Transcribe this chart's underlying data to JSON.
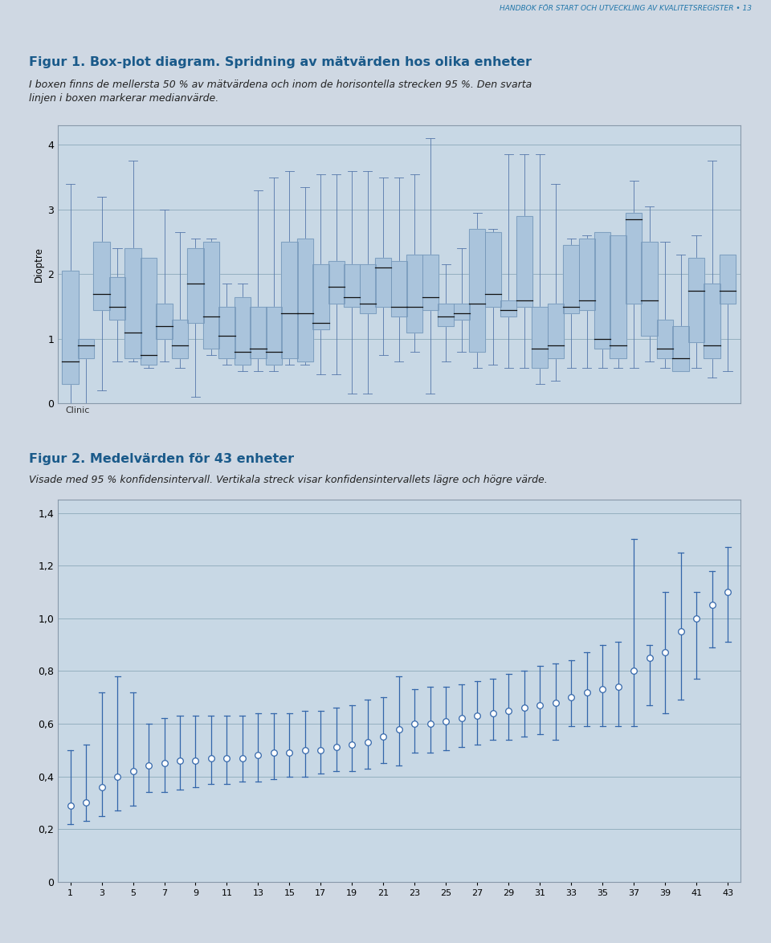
{
  "page_bg": "#cfd8e3",
  "chart1_bg": "#c8d8e5",
  "chart2_bg": "#c8d8e5",
  "chart_border": "#8899aa",
  "header_text": "HANDBOK FÖR START OCH UTVECKLING AV KVALITETSREGISTER • 13",
  "fig1_title": "Figur 1. Box-plot diagram. Spridning av mätvärden hos olika enheter",
  "fig1_subtitle": "I boxen finns de mellersta 50 % av mätvärdena och inom de horisontella strecken 95 %. Den svarta\nlinjen i boxen markerar medianvärde.",
  "fig1_ylabel": "Dioptre",
  "fig1_xlabel": "Clinic",
  "fig1_ylim": [
    0,
    4.3
  ],
  "fig1_yticks": [
    0,
    1,
    2,
    3,
    4
  ],
  "fig2_title": "Figur 2. Medelvärden för 43 enheter",
  "fig2_subtitle": "Visade med 95 % konfidensintervall. Vertikala streck visar konfidensintervallets lägre och högre värde.",
  "fig2_ylim": [
    0,
    1.45
  ],
  "fig2_yticks": [
    0,
    0.2,
    0.4,
    0.6,
    0.8,
    1.0,
    1.2,
    1.4
  ],
  "fig2_ytick_labels": [
    "0",
    "0,2",
    "0,4",
    "0,6",
    "0,8",
    "1,0",
    "1,2",
    "1,4"
  ],
  "box_color": "#aac4dc",
  "box_edge_color": "#7799bb",
  "whisker_color": "#5577aa",
  "median_color": "#111111",
  "dot_color": "white",
  "dot_edge_color": "#3366aa",
  "ci_line_color": "#3366aa",
  "title_color": "#1a5a8a",
  "subtitle_color": "#222222",
  "header_color": "#2277aa",
  "boxes": [
    {
      "med": 0.65,
      "q1": 0.3,
      "q3": 2.05,
      "whislo": 0.0,
      "whishi": 3.4
    },
    {
      "med": 0.9,
      "q1": 0.7,
      "q3": 1.0,
      "whislo": 0.0,
      "whishi": 1.0
    },
    {
      "med": 1.7,
      "q1": 1.45,
      "q3": 2.5,
      "whislo": 0.2,
      "whishi": 3.2
    },
    {
      "med": 1.5,
      "q1": 1.3,
      "q3": 1.95,
      "whislo": 0.65,
      "whishi": 2.4
    },
    {
      "med": 1.1,
      "q1": 0.7,
      "q3": 2.4,
      "whislo": 0.65,
      "whishi": 3.75
    },
    {
      "med": 0.75,
      "q1": 0.6,
      "q3": 2.25,
      "whislo": 0.55,
      "whishi": 2.25
    },
    {
      "med": 1.2,
      "q1": 1.0,
      "q3": 1.55,
      "whislo": 0.65,
      "whishi": 3.0
    },
    {
      "med": 0.9,
      "q1": 0.7,
      "q3": 1.3,
      "whislo": 0.55,
      "whishi": 2.65
    },
    {
      "med": 1.85,
      "q1": 1.25,
      "q3": 2.4,
      "whislo": 0.1,
      "whishi": 2.55
    },
    {
      "med": 1.35,
      "q1": 0.85,
      "q3": 2.5,
      "whislo": 0.75,
      "whishi": 2.55
    },
    {
      "med": 1.05,
      "q1": 0.7,
      "q3": 1.5,
      "whislo": 0.6,
      "whishi": 1.85
    },
    {
      "med": 0.8,
      "q1": 0.6,
      "q3": 1.65,
      "whislo": 0.5,
      "whishi": 1.85
    },
    {
      "med": 0.85,
      "q1": 0.7,
      "q3": 1.5,
      "whislo": 0.5,
      "whishi": 3.3
    },
    {
      "med": 0.8,
      "q1": 0.6,
      "q3": 1.5,
      "whislo": 0.5,
      "whishi": 3.5
    },
    {
      "med": 1.4,
      "q1": 0.7,
      "q3": 2.5,
      "whislo": 0.6,
      "whishi": 3.6
    },
    {
      "med": 1.4,
      "q1": 0.65,
      "q3": 2.55,
      "whislo": 0.6,
      "whishi": 3.35
    },
    {
      "med": 1.25,
      "q1": 1.15,
      "q3": 2.15,
      "whislo": 0.45,
      "whishi": 3.55
    },
    {
      "med": 1.8,
      "q1": 1.55,
      "q3": 2.2,
      "whislo": 0.45,
      "whishi": 3.55
    },
    {
      "med": 1.65,
      "q1": 1.5,
      "q3": 2.15,
      "whislo": 0.15,
      "whishi": 3.6
    },
    {
      "med": 1.55,
      "q1": 1.4,
      "q3": 2.15,
      "whislo": 0.15,
      "whishi": 3.6
    },
    {
      "med": 2.1,
      "q1": 1.5,
      "q3": 2.25,
      "whislo": 0.75,
      "whishi": 3.5
    },
    {
      "med": 1.5,
      "q1": 1.35,
      "q3": 2.2,
      "whislo": 0.65,
      "whishi": 3.5
    },
    {
      "med": 1.5,
      "q1": 1.1,
      "q3": 2.3,
      "whislo": 0.8,
      "whishi": 3.55
    },
    {
      "med": 1.65,
      "q1": 1.45,
      "q3": 2.3,
      "whislo": 0.15,
      "whishi": 4.1
    },
    {
      "med": 1.35,
      "q1": 1.2,
      "q3": 1.55,
      "whislo": 0.65,
      "whishi": 2.15
    },
    {
      "med": 1.4,
      "q1": 1.3,
      "q3": 1.55,
      "whislo": 0.8,
      "whishi": 2.4
    },
    {
      "med": 1.55,
      "q1": 0.8,
      "q3": 2.7,
      "whislo": 0.55,
      "whishi": 2.95
    },
    {
      "med": 1.7,
      "q1": 1.5,
      "q3": 2.65,
      "whislo": 0.6,
      "whishi": 2.7
    },
    {
      "med": 1.45,
      "q1": 1.35,
      "q3": 1.6,
      "whislo": 0.55,
      "whishi": 3.85
    },
    {
      "med": 1.6,
      "q1": 1.5,
      "q3": 2.9,
      "whislo": 0.55,
      "whishi": 3.85
    },
    {
      "med": 0.85,
      "q1": 0.55,
      "q3": 1.5,
      "whislo": 0.3,
      "whishi": 3.85
    },
    {
      "med": 0.9,
      "q1": 0.7,
      "q3": 1.55,
      "whislo": 0.35,
      "whishi": 3.4
    },
    {
      "med": 1.5,
      "q1": 1.4,
      "q3": 2.45,
      "whislo": 0.55,
      "whishi": 2.55
    },
    {
      "med": 1.6,
      "q1": 1.45,
      "q3": 2.55,
      "whislo": 0.55,
      "whishi": 2.6
    },
    {
      "med": 1.0,
      "q1": 0.85,
      "q3": 2.65,
      "whislo": 0.55,
      "whishi": 2.65
    },
    {
      "med": 0.9,
      "q1": 0.7,
      "q3": 2.6,
      "whislo": 0.55,
      "whishi": 2.6
    },
    {
      "med": 2.85,
      "q1": 1.55,
      "q3": 2.95,
      "whislo": 0.55,
      "whishi": 3.45
    },
    {
      "med": 1.6,
      "q1": 1.05,
      "q3": 2.5,
      "whislo": 0.65,
      "whishi": 3.05
    },
    {
      "med": 0.85,
      "q1": 0.7,
      "q3": 1.3,
      "whislo": 0.55,
      "whishi": 2.5
    },
    {
      "med": 0.7,
      "q1": 0.5,
      "q3": 1.2,
      "whislo": 0.5,
      "whishi": 2.3
    },
    {
      "med": 1.75,
      "q1": 0.95,
      "q3": 2.25,
      "whislo": 0.55,
      "whishi": 2.6
    },
    {
      "med": 0.9,
      "q1": 0.7,
      "q3": 1.85,
      "whislo": 0.4,
      "whishi": 3.75
    },
    {
      "med": 1.75,
      "q1": 1.55,
      "q3": 2.3,
      "whislo": 0.5,
      "whishi": 2.3
    }
  ],
  "means": [
    0.29,
    0.3,
    0.36,
    0.4,
    0.42,
    0.44,
    0.45,
    0.46,
    0.46,
    0.47,
    0.47,
    0.47,
    0.48,
    0.49,
    0.49,
    0.5,
    0.5,
    0.51,
    0.52,
    0.53,
    0.55,
    0.58,
    0.6,
    0.6,
    0.61,
    0.62,
    0.63,
    0.64,
    0.65,
    0.66,
    0.67,
    0.68,
    0.7,
    0.72,
    0.73,
    0.74,
    0.8,
    0.85,
    0.87,
    0.95,
    1.0,
    1.05,
    1.1
  ],
  "ci_low": [
    0.22,
    0.23,
    0.25,
    0.27,
    0.29,
    0.34,
    0.34,
    0.35,
    0.36,
    0.37,
    0.37,
    0.38,
    0.38,
    0.39,
    0.4,
    0.4,
    0.41,
    0.42,
    0.42,
    0.43,
    0.45,
    0.44,
    0.49,
    0.49,
    0.5,
    0.51,
    0.52,
    0.54,
    0.54,
    0.55,
    0.56,
    0.54,
    0.59,
    0.59,
    0.59,
    0.59,
    0.59,
    0.67,
    0.64,
    0.69,
    0.77,
    0.89,
    0.91
  ],
  "ci_high": [
    0.5,
    0.52,
    0.72,
    0.78,
    0.72,
    0.6,
    0.62,
    0.63,
    0.63,
    0.63,
    0.63,
    0.63,
    0.64,
    0.64,
    0.64,
    0.65,
    0.65,
    0.66,
    0.67,
    0.69,
    0.7,
    0.78,
    0.73,
    0.74,
    0.74,
    0.75,
    0.76,
    0.77,
    0.79,
    0.8,
    0.82,
    0.83,
    0.84,
    0.87,
    0.9,
    0.91,
    1.3,
    0.9,
    1.1,
    1.25,
    1.1,
    1.18,
    1.27
  ]
}
